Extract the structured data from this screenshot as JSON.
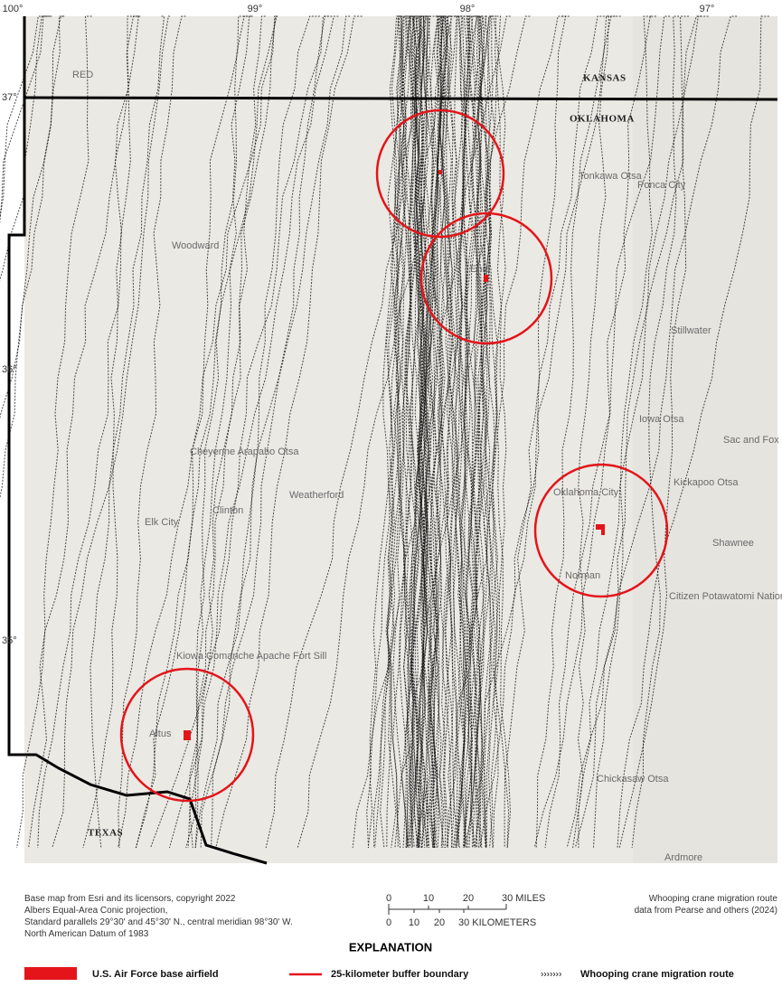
{
  "graticule": {
    "longitudes": [
      "100°",
      "99°",
      "98°",
      "97°"
    ],
    "latitudes": [
      "37°",
      "36°",
      "35°"
    ]
  },
  "states": [
    "KANSAS",
    "OKLAHOMA",
    "TEXAS"
  ],
  "places": [
    "Tonkawa Otsa",
    "Ponca City",
    "Enid",
    "Woodward",
    "Stillwater",
    "Iowa Otsa",
    "Sac and Fox Otsa",
    "Cheyenne Arapaho Otsa",
    "Kickapoo Otsa",
    "Oklahoma City",
    "Clinton",
    "Elk City",
    "Weatherford",
    "Norman",
    "Shawnee",
    "Citizen Potawatomi Nation",
    "Kiowa Comanche Apache Fort Sill",
    "Altus",
    "Chickasaw Otsa",
    "Ardmore",
    "RED"
  ],
  "scale": {
    "miles": [
      "0",
      "10",
      "20",
      "30 MILES"
    ],
    "kilometers": [
      "0",
      "10",
      "20",
      "30 KILOMETERS"
    ]
  },
  "credits_left": [
    "Base map from Esri and its licensors, copyright 2022",
    "Albers Equal-Area Conic projection,",
    "Standard parallels 29°30' and 45°30' N., central meridian 98°30' W.",
    "North American Datum of 1983"
  ],
  "credits_right": [
    "Whooping crane migration route",
    "data from Pearse and others (2024)"
  ],
  "explanation": {
    "title": "EXPLANATION",
    "items": [
      "U.S. Air Force base airfield",
      "25-kilometer buffer boundary",
      "Whooping crane migration route"
    ]
  }
}
